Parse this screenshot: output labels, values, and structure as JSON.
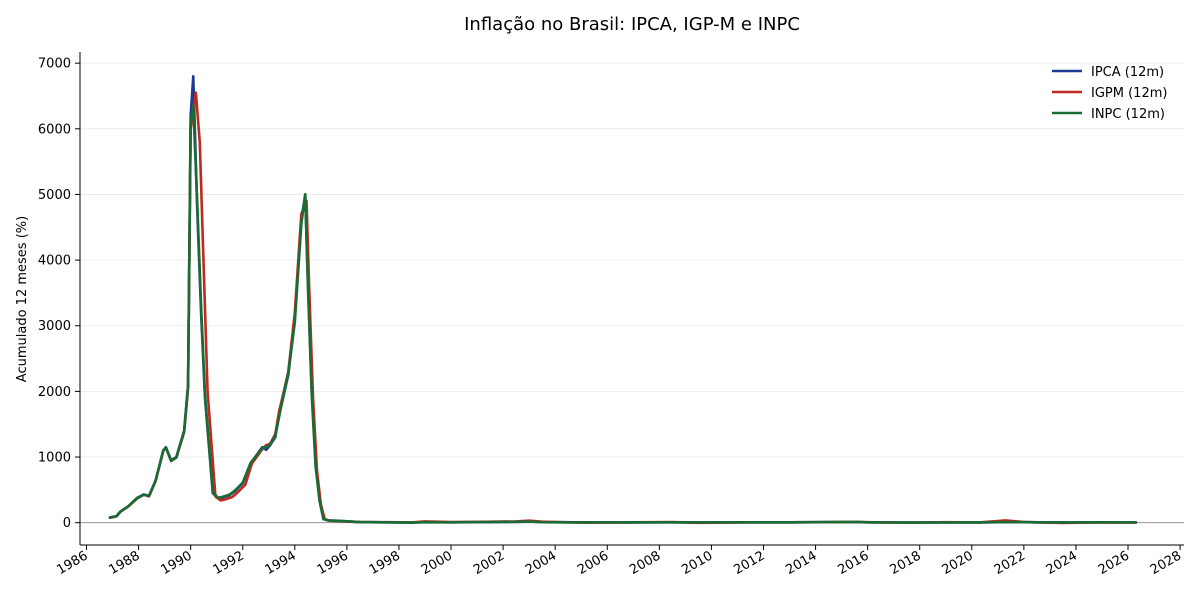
{
  "chart_data": {
    "type": "line",
    "title": "Inflação no Brasil: IPCA, IGP-M e INPC",
    "xlabel": "",
    "ylabel": "Acumulado 12 meses (%)",
    "xlim": [
      1985.75,
      2028.15
    ],
    "ylim": [
      -340,
      7170
    ],
    "x_ticks": [
      "1986",
      "1988",
      "1990",
      "1992",
      "1994",
      "1996",
      "1998",
      "2000",
      "2002",
      "2004",
      "2006",
      "2008",
      "2010",
      "2012",
      "2014",
      "2016",
      "2018",
      "2020",
      "2022",
      "2024",
      "2026",
      "2028"
    ],
    "y_ticks": [
      "0",
      "1000",
      "2000",
      "3000",
      "4000",
      "5000",
      "6000",
      "7000"
    ],
    "grid": "horizontal",
    "legend_position": "top-right",
    "zero_line": true,
    "series": [
      {
        "name": "IPCA (12m)",
        "color": "#1f3a93",
        "x": [
          1986.9,
          1987.15,
          1987.3,
          1987.6,
          1987.95,
          1988.2,
          1988.4,
          1988.65,
          1988.95,
          1989.05,
          1989.25,
          1989.45,
          1989.75,
          1989.9,
          1990.0,
          1990.1,
          1990.25,
          1990.4,
          1990.55,
          1990.85,
          1991.05,
          1991.2,
          1991.5,
          1991.7,
          1992.0,
          1992.3,
          1992.75,
          1992.9,
          1993.05,
          1993.25,
          1993.4,
          1993.55,
          1993.75,
          1994.0,
          1994.25,
          1994.4,
          1994.5,
          1994.65,
          1994.8,
          1994.95,
          1995.1,
          1995.3,
          1995.6,
          1996.5,
          1997.5,
          1998.5,
          1999.0,
          2000.0,
          2001.0,
          2002.5,
          2003.0,
          2003.5,
          2004.0,
          2005.0,
          2006.5,
          2008.5,
          2009.5,
          2011.5,
          2013.0,
          2015.5,
          2016.0,
          2017.5,
          2019.0,
          2020.3,
          2021.5,
          2022.5,
          2023.0,
          2024.0,
          2025.0,
          2026.3
        ],
        "y": [
          80,
          100,
          170,
          250,
          380,
          430,
          410,
          640,
          1100,
          1150,
          950,
          1000,
          1400,
          2100,
          6200,
          6800,
          4800,
          3200,
          1900,
          450,
          370,
          380,
          420,
          480,
          600,
          900,
          1150,
          1110,
          1180,
          1300,
          1650,
          1900,
          2250,
          3100,
          4600,
          5000,
          3700,
          2000,
          900,
          350,
          60,
          35,
          30,
          10,
          5,
          2,
          9,
          6,
          8,
          12,
          17,
          9,
          7,
          6,
          3,
          6,
          4,
          6,
          6,
          10,
          6,
          3,
          4,
          4,
          10,
          6,
          4,
          4,
          5,
          5
        ]
      },
      {
        "name": "IGPM (12m)",
        "color": "#c0291e",
        "x": [
          1986.9,
          1987.15,
          1987.3,
          1987.6,
          1987.95,
          1988.2,
          1988.4,
          1988.65,
          1988.95,
          1989.05,
          1989.25,
          1989.45,
          1989.75,
          1989.9,
          1990.0,
          1990.2,
          1990.35,
          1990.5,
          1990.65,
          1990.95,
          1991.15,
          1991.3,
          1991.6,
          1991.8,
          1992.1,
          1992.35,
          1992.75,
          1992.9,
          1993.05,
          1993.25,
          1993.4,
          1993.55,
          1993.75,
          1994.0,
          1994.25,
          1994.45,
          1994.55,
          1994.7,
          1994.85,
          1995.0,
          1995.15,
          1995.35,
          1995.6,
          1996.5,
          1997.5,
          1998.5,
          1999.0,
          2000.0,
          2001.0,
          2002.5,
          2003.0,
          2003.5,
          2004.0,
          2005.0,
          2006.5,
          2008.5,
          2009.5,
          2011.5,
          2013.0,
          2015.5,
          2016.0,
          2017.5,
          2019.0,
          2020.3,
          2021.3,
          2022.0,
          2022.5,
          2023.5,
          2024.5,
          2026.3
        ],
        "y": [
          75,
          95,
          165,
          245,
          370,
          425,
          400,
          630,
          1100,
          1140,
          940,
          990,
          1380,
          2050,
          6000,
          6550,
          5800,
          3900,
          2000,
          400,
          340,
          350,
          390,
          460,
          580,
          900,
          1120,
          1180,
          1200,
          1350,
          1700,
          1950,
          2300,
          3200,
          4700,
          4900,
          3600,
          1900,
          800,
          280,
          50,
          30,
          25,
          9,
          7,
          3,
          20,
          10,
          11,
          20,
          30,
          15,
          10,
          1,
          4,
          10,
          -2,
          5,
          5,
          10,
          7,
          -1,
          7,
          4,
          35,
          10,
          5,
          -4,
          3,
          1
        ]
      },
      {
        "name": "INPC (12m)",
        "color": "#1b6b35",
        "x": [
          1986.9,
          1987.15,
          1987.3,
          1987.6,
          1987.95,
          1988.2,
          1988.4,
          1988.65,
          1988.95,
          1989.05,
          1989.25,
          1989.45,
          1989.75,
          1989.9,
          1990.0,
          1990.1,
          1990.25,
          1990.4,
          1990.55,
          1990.85,
          1991.05,
          1991.2,
          1991.5,
          1991.7,
          1992.0,
          1992.3,
          1992.75,
          1992.9,
          1993.05,
          1993.25,
          1993.4,
          1993.55,
          1993.75,
          1994.0,
          1994.25,
          1994.4,
          1994.5,
          1994.65,
          1994.8,
          1994.95,
          1995.1,
          1995.3,
          1995.6,
          1996.5,
          1997.5,
          1998.5,
          1999.0,
          2000.0,
          2001.0,
          2002.5,
          2003.0,
          2003.5,
          2004.0,
          2005.0,
          2006.5,
          2008.5,
          2009.5,
          2011.5,
          2013.0,
          2015.5,
          2016.0,
          2017.5,
          2019.0,
          2020.3,
          2021.5,
          2022.5,
          2023.0,
          2024.0,
          2025.0,
          2026.3
        ],
        "y": [
          78,
          98,
          168,
          248,
          375,
          428,
          405,
          635,
          1100,
          1145,
          945,
          995,
          1390,
          2080,
          6100,
          6350,
          4900,
          3300,
          1950,
          470,
          380,
          390,
          430,
          490,
          610,
          910,
          1140,
          1150,
          1190,
          1320,
          1620,
          1920,
          2280,
          3050,
          4550,
          5000,
          3650,
          1950,
          850,
          330,
          55,
          32,
          28,
          9,
          5,
          2,
          8,
          6,
          9,
          14,
          18,
          8,
          6,
          4,
          5,
          6,
          4,
          6,
          5,
          11,
          6,
          2,
          4,
          5,
          10,
          6,
          4,
          4,
          5,
          5
        ]
      }
    ]
  }
}
